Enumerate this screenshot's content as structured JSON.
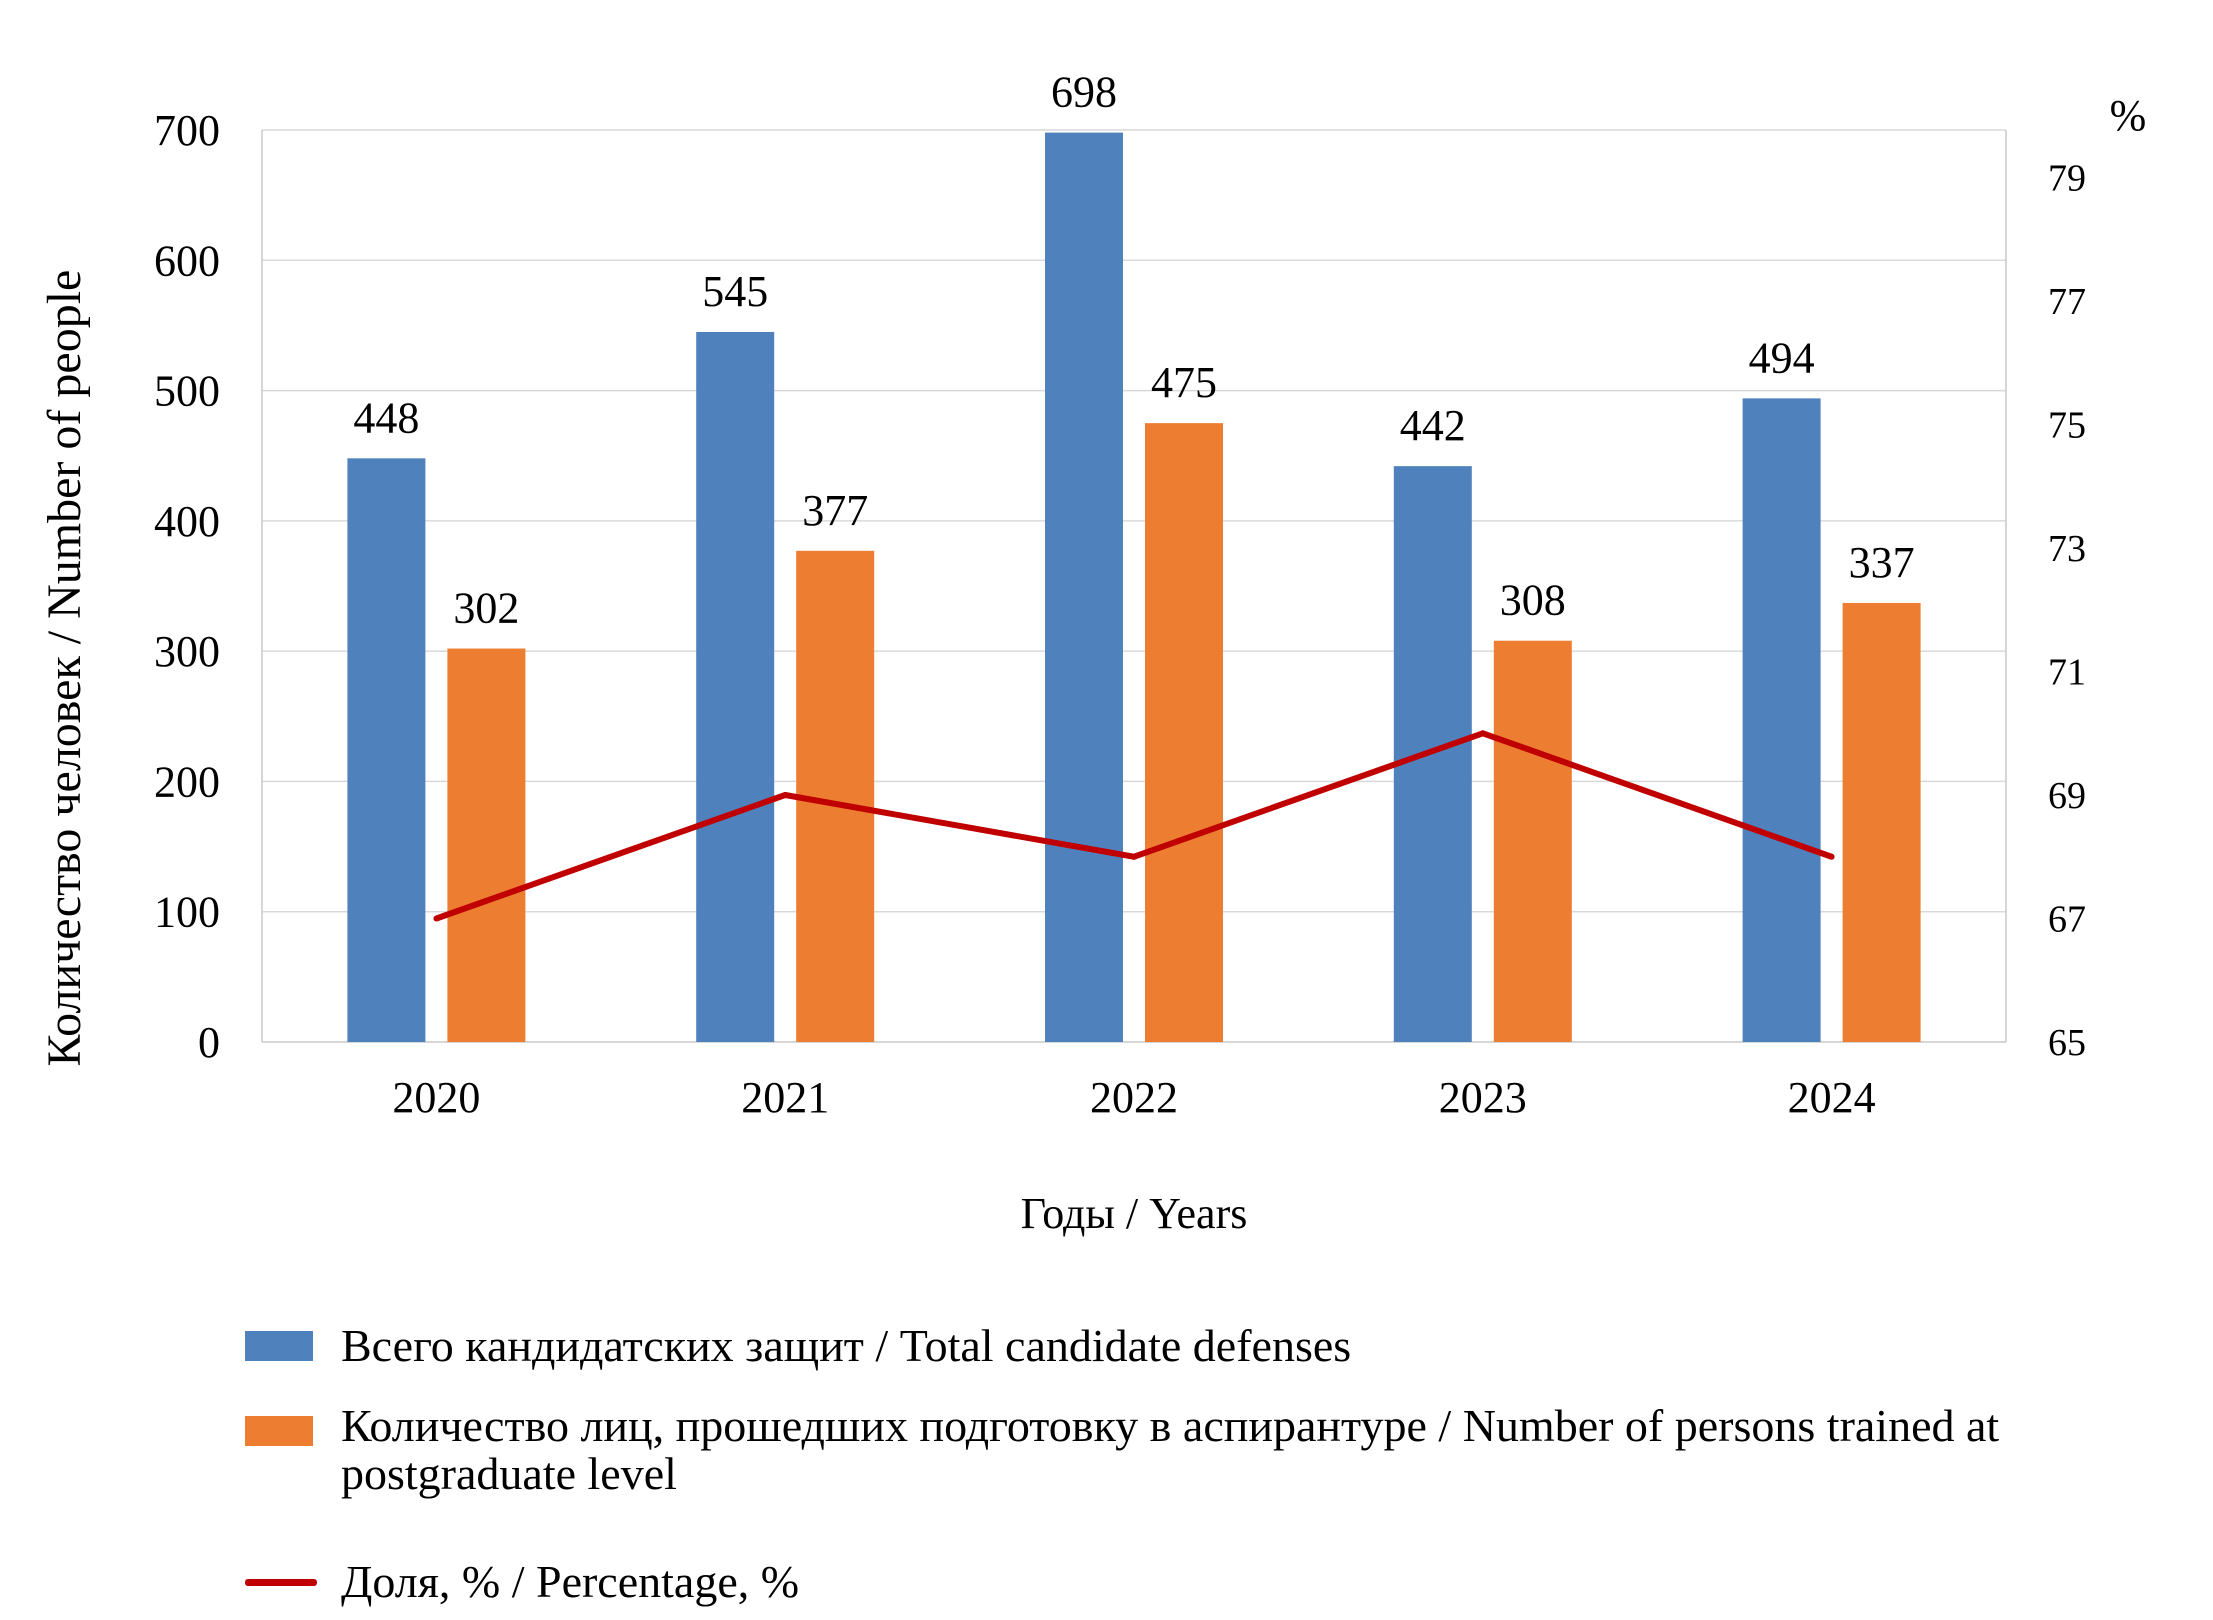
{
  "chart_data": {
    "type": "bar",
    "categories": [
      "2020",
      "2021",
      "2022",
      "2023",
      "2024"
    ],
    "series": [
      {
        "name": "Всего кандидатских защит / Total candidate defenses",
        "type": "bar",
        "axis": "left",
        "values": [
          448,
          545,
          698,
          442,
          494
        ],
        "color": "#4F81BD"
      },
      {
        "name": "Количество лиц, прошедших подготовку в аспирантуре / Number of persons trained at postgraduate level",
        "type": "bar",
        "axis": "left",
        "values": [
          302,
          377,
          475,
          308,
          337
        ],
        "color": "#ED7D31"
      },
      {
        "name": "Доля, % / Percentage, %",
        "type": "line",
        "axis": "right",
        "values": [
          67,
          69,
          68,
          70,
          68
        ],
        "color": "#C00000"
      }
    ],
    "xlabel": "Годы / Years",
    "ylabel": "Количество человек / Number of people",
    "y2label": "%",
    "ylim": [
      0,
      700
    ],
    "y2lim": [
      65,
      79.77
    ],
    "yticks": [
      "0",
      "100",
      "200",
      "300",
      "400",
      "500",
      "600",
      "700"
    ],
    "y2ticks": [
      "65",
      "67",
      "69",
      "71",
      "73",
      "75",
      "77",
      "79"
    ],
    "grid": true,
    "legend": "bottom"
  }
}
